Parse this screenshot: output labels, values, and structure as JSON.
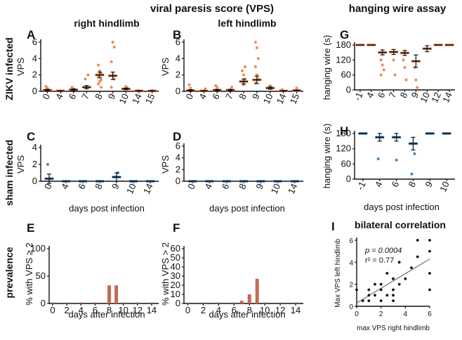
{
  "figure": {
    "title_vps": "viral paresis score (VPS)",
    "title_hanging": "hanging wire assay",
    "subtitle_right": "right hindlimb",
    "subtitle_left": "left hindlimb",
    "row_zikv": "ZIKV infected",
    "row_sham": "sham infected",
    "row_prevalence": "prevalence",
    "xlabel_post": "days post infection",
    "xlabel_after": "days after infection",
    "colors": {
      "zikv": "#ef8a55",
      "sham": "#3f86c8",
      "bar": "#c46a55",
      "axis": "#111111"
    }
  },
  "chart_data": [
    {
      "id": "A",
      "type": "scatter",
      "title": "right hindlimb",
      "ylabel": "VPS",
      "xlabel": "",
      "categories": [
        "0",
        "4",
        "6",
        "7",
        "8",
        "9",
        "10",
        "14",
        "15"
      ],
      "ylim": [
        0,
        6
      ],
      "yticks": [
        0,
        2,
        4,
        6
      ],
      "color": "#ef8a55",
      "points": [
        [
          0,
          0.6
        ],
        [
          0,
          0.4
        ],
        [
          1,
          0
        ],
        [
          2,
          0.5
        ],
        [
          2,
          0.3
        ],
        [
          3,
          2
        ],
        [
          3,
          1.5
        ],
        [
          3,
          0.5
        ],
        [
          4,
          2.2
        ],
        [
          4,
          1.8
        ],
        [
          4,
          1.2
        ],
        [
          4,
          1.4
        ],
        [
          4,
          3.2
        ],
        [
          4,
          2.5
        ],
        [
          4,
          0.5
        ],
        [
          4,
          0.9
        ],
        [
          5,
          6
        ],
        [
          5,
          5.4
        ],
        [
          5,
          3.6
        ],
        [
          5,
          2
        ],
        [
          5,
          1.5
        ],
        [
          5,
          0.5
        ],
        [
          6,
          0.6
        ],
        [
          6,
          0.4
        ],
        [
          7,
          0.1
        ],
        [
          8,
          0.1
        ]
      ],
      "means": [
        0.15,
        0.05,
        0.2,
        0.5,
        2.0,
        1.9,
        0.3,
        0.05,
        0.05
      ],
      "errors": [
        0.1,
        0.05,
        0.1,
        0.2,
        0.35,
        0.45,
        0.1,
        0.05,
        0.05
      ]
    },
    {
      "id": "B",
      "type": "scatter",
      "title": "left hindlimb",
      "ylabel": "VPS",
      "xlabel": "",
      "categories": [
        "0",
        "4",
        "6",
        "7",
        "8",
        "9",
        "10",
        "14",
        "15"
      ],
      "ylim": [
        0,
        6
      ],
      "yticks": [
        0,
        2,
        4,
        6
      ],
      "color": "#ef8a55",
      "points": [
        [
          0,
          0.8
        ],
        [
          0,
          0.4
        ],
        [
          1,
          0.3
        ],
        [
          2,
          0.7
        ],
        [
          2,
          0.5
        ],
        [
          3,
          0.5
        ],
        [
          4,
          2.5
        ],
        [
          4,
          2
        ],
        [
          4,
          1.5
        ],
        [
          4,
          1.2
        ],
        [
          4,
          0.8
        ],
        [
          4,
          3
        ],
        [
          5,
          6
        ],
        [
          5,
          5.3
        ],
        [
          5,
          4
        ],
        [
          5,
          3
        ],
        [
          5,
          2
        ],
        [
          5,
          1.5
        ],
        [
          5,
          1
        ],
        [
          6,
          0.7
        ],
        [
          6,
          0.4
        ],
        [
          7,
          0.2
        ],
        [
          8,
          0.4
        ]
      ],
      "means": [
        0.1,
        0.05,
        0.15,
        0.15,
        1.2,
        1.4,
        0.4,
        0.05,
        0.1
      ],
      "errors": [
        0.1,
        0.05,
        0.1,
        0.1,
        0.3,
        0.45,
        0.15,
        0.05,
        0.05
      ]
    },
    {
      "id": "C",
      "type": "scatter",
      "title": "",
      "ylabel": "VPS",
      "xlabel": "days post infection",
      "categories": [
        "0",
        "4",
        "6",
        "8",
        "9",
        "10",
        "14"
      ],
      "ylim": [
        0,
        4
      ],
      "yticks": [
        0,
        2,
        4
      ],
      "color": "#3f86c8",
      "points": [
        [
          0,
          2
        ],
        [
          0,
          0.3
        ],
        [
          4,
          1
        ],
        [
          4,
          0.5
        ]
      ],
      "means": [
        0.3,
        0,
        0,
        0,
        0.5,
        0,
        0
      ],
      "errors": [
        0.55,
        0,
        0,
        0,
        0.5,
        0,
        0
      ]
    },
    {
      "id": "D",
      "type": "scatter",
      "title": "",
      "ylabel": "VPS",
      "xlabel": "days post infection",
      "categories": [
        "0",
        "4",
        "6",
        "8",
        "9",
        "10",
        "14"
      ],
      "ylim": [
        0,
        6
      ],
      "yticks": [
        0,
        2,
        4,
        6
      ],
      "color": "#3f86c8",
      "points": [],
      "means": [
        0,
        0,
        0,
        0,
        0,
        0,
        0
      ],
      "errors": [
        0,
        0,
        0,
        0,
        0,
        0,
        0
      ]
    },
    {
      "id": "E",
      "type": "bar",
      "title": "",
      "ylabel": "% with VPS ≥ 2",
      "xlabel": "days after infection",
      "xlim": [
        -0.5,
        15
      ],
      "xticks": [
        0,
        2,
        4,
        6,
        8,
        10,
        12,
        14
      ],
      "ylim": [
        0,
        100
      ],
      "yticks": [
        0,
        50,
        100
      ],
      "color": "#c46a55",
      "bars": [
        {
          "x": 8,
          "value": 33
        },
        {
          "x": 9,
          "value": 33
        }
      ]
    },
    {
      "id": "F",
      "type": "bar",
      "title": "",
      "ylabel": "% with VPS > 2",
      "xlabel": "days after infection",
      "xlim": [
        -0.5,
        15
      ],
      "xticks": [
        0,
        2,
        4,
        6,
        8,
        10,
        12,
        14
      ],
      "ylim": [
        0,
        60
      ],
      "yticks": [
        0,
        10,
        20,
        30,
        40,
        50,
        60
      ],
      "color": "#c46a55",
      "bars": [
        {
          "x": 7,
          "value": 3
        },
        {
          "x": 8,
          "value": 10
        },
        {
          "x": 9,
          "value": 27
        }
      ]
    },
    {
      "id": "G",
      "type": "scatter",
      "title": "hanging wire assay",
      "ylabel": "hanging wire (s)",
      "xlabel": "",
      "categories": [
        "-1",
        "4",
        "6",
        "7",
        "8",
        "9",
        "10",
        "12",
        "14"
      ],
      "ylim": [
        0,
        180
      ],
      "yticks": [
        0,
        60,
        120,
        180
      ],
      "color": "#ef8a55",
      "points": [
        [
          2,
          120
        ],
        [
          2,
          100
        ],
        [
          2,
          80
        ],
        [
          2,
          60
        ],
        [
          3,
          120
        ],
        [
          3,
          60
        ],
        [
          4,
          120
        ],
        [
          4,
          90
        ],
        [
          4,
          40
        ],
        [
          5,
          90
        ],
        [
          5,
          40
        ],
        [
          5,
          10
        ]
      ],
      "means": [
        180,
        180,
        150,
        152,
        148,
        115,
        165,
        180,
        180
      ],
      "errors": [
        0,
        0,
        10,
        10,
        10,
        25,
        12,
        0,
        0
      ]
    },
    {
      "id": "H",
      "type": "scatter",
      "title": "",
      "ylabel": "hanging wire (s)",
      "xlabel": "days post infection",
      "categories": [
        "-1",
        "4",
        "6",
        "8",
        "9",
        "10"
      ],
      "ylim": [
        0,
        180
      ],
      "yticks": [
        0,
        60,
        120,
        180
      ],
      "color": "#3f86c8",
      "points": [
        [
          1,
          80
        ],
        [
          2,
          75
        ],
        [
          3,
          100
        ],
        [
          3,
          20
        ]
      ],
      "means": [
        180,
        165,
        165,
        140,
        180,
        180
      ],
      "errors": [
        0,
        15,
        15,
        25,
        0,
        0
      ]
    },
    {
      "id": "I",
      "type": "scatter",
      "title": "bilateral correlation",
      "xlabel": "max VPS right hindlimb",
      "ylabel": "Max VPS left hindlimb",
      "xlim": [
        0,
        6
      ],
      "ylim": [
        0,
        6
      ],
      "xticks": [
        0,
        2,
        4,
        6
      ],
      "yticks": [
        0,
        2,
        4,
        6
      ],
      "color": "#111111",
      "p_value": "p = 0.0004",
      "r_squared": "r² = 0.77",
      "points": [
        [
          0,
          1.5
        ],
        [
          0.5,
          0.5
        ],
        [
          1,
          0.5
        ],
        [
          1,
          1
        ],
        [
          1,
          1.5
        ],
        [
          1.5,
          1
        ],
        [
          1.5,
          2
        ],
        [
          2,
          0.5
        ],
        [
          2,
          1.5
        ],
        [
          2,
          2
        ],
        [
          2.5,
          1
        ],
        [
          2.5,
          3
        ],
        [
          3,
          0.5
        ],
        [
          3,
          1
        ],
        [
          3,
          1.5
        ],
        [
          3,
          2.5
        ],
        [
          3.5,
          2
        ],
        [
          3.5,
          4
        ],
        [
          4,
          2.5
        ],
        [
          4.5,
          3.5
        ],
        [
          5,
          4.5
        ],
        [
          5,
          6
        ],
        [
          6,
          6
        ],
        [
          6,
          5
        ],
        [
          6,
          3
        ],
        [
          6,
          1.5
        ]
      ],
      "fit": [
        [
          0,
          0.3
        ],
        [
          6,
          4.3
        ]
      ]
    }
  ]
}
